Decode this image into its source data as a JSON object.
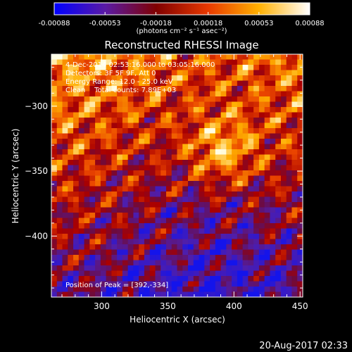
{
  "chart_data": {
    "type": "heatmap",
    "title": "Reconstructed RHESSI Image",
    "xlabel": "Heliocentric X (arcsec)",
    "ylabel": "Heliocentric Y (arcsec)",
    "xlim": [
      262,
      452
    ],
    "ylim": [
      -447,
      -260
    ],
    "x_ticks": [
      300,
      350,
      400,
      450
    ],
    "y_ticks": [
      -300,
      -350,
      -400
    ],
    "colorbar": {
      "range": [
        -0.00088,
        0.00088
      ],
      "tick_values": [
        -0.00088,
        -0.00053,
        -0.00018,
        0.00018,
        0.00053,
        0.00088
      ],
      "tick_labels": [
        "-0.00088",
        "-0.00053",
        "-0.00018",
        "0.00018",
        "0.00053",
        "0.00088"
      ],
      "units_label": "(photons cm⁻² s⁻¹ asec⁻²)",
      "colormap": [
        "#0000ff",
        "#5a1aa5",
        "#800000",
        "#e83800",
        "#ffb000",
        "#ffffff"
      ]
    },
    "info_lines": [
      "4-Dec-2014 02:53:16.000 to 03:05:16.000",
      "Detectors: 3F 5F 9F, Att 0",
      "Energy Range: 12.0 - 25.0 keV",
      "Clean    Total counts: 7.89E+03"
    ],
    "peak_label": "Position of Peak = [392,-334]",
    "peak": {
      "x": 392,
      "y": -334
    }
  },
  "footer_timestamp": "20-Aug-2017 02:33"
}
